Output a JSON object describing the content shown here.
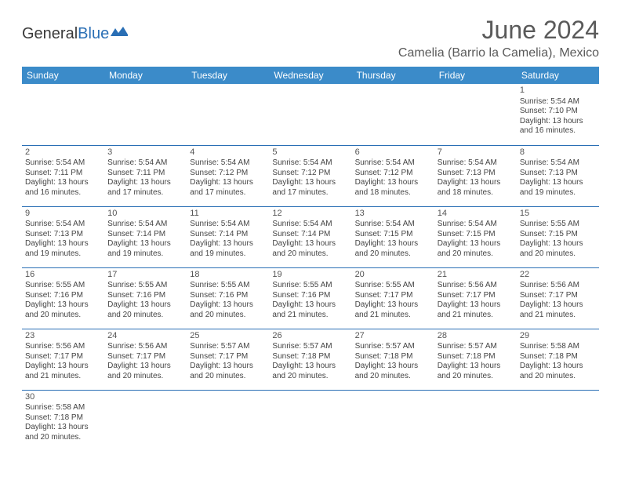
{
  "brand": {
    "part1": "General",
    "part2": "Blue"
  },
  "title": "June 2024",
  "location": "Camelia (Barrio la Camelia), Mexico",
  "colors": {
    "header_bg": "#3b8bc9",
    "header_text": "#ffffff",
    "rule": "#2a6fb5",
    "text": "#444444",
    "title": "#5a5a5a"
  },
  "day_headers": [
    "Sunday",
    "Monday",
    "Tuesday",
    "Wednesday",
    "Thursday",
    "Friday",
    "Saturday"
  ],
  "labels": {
    "sunrise": "Sunrise:",
    "sunset": "Sunset:",
    "daylight": "Daylight:"
  },
  "weeks": [
    [
      null,
      null,
      null,
      null,
      null,
      null,
      {
        "n": "1",
        "sr": "5:54 AM",
        "ss": "7:10 PM",
        "dl": "13 hours and 16 minutes."
      }
    ],
    [
      {
        "n": "2",
        "sr": "5:54 AM",
        "ss": "7:11 PM",
        "dl": "13 hours and 16 minutes."
      },
      {
        "n": "3",
        "sr": "5:54 AM",
        "ss": "7:11 PM",
        "dl": "13 hours and 17 minutes."
      },
      {
        "n": "4",
        "sr": "5:54 AM",
        "ss": "7:12 PM",
        "dl": "13 hours and 17 minutes."
      },
      {
        "n": "5",
        "sr": "5:54 AM",
        "ss": "7:12 PM",
        "dl": "13 hours and 17 minutes."
      },
      {
        "n": "6",
        "sr": "5:54 AM",
        "ss": "7:12 PM",
        "dl": "13 hours and 18 minutes."
      },
      {
        "n": "7",
        "sr": "5:54 AM",
        "ss": "7:13 PM",
        "dl": "13 hours and 18 minutes."
      },
      {
        "n": "8",
        "sr": "5:54 AM",
        "ss": "7:13 PM",
        "dl": "13 hours and 19 minutes."
      }
    ],
    [
      {
        "n": "9",
        "sr": "5:54 AM",
        "ss": "7:13 PM",
        "dl": "13 hours and 19 minutes."
      },
      {
        "n": "10",
        "sr": "5:54 AM",
        "ss": "7:14 PM",
        "dl": "13 hours and 19 minutes."
      },
      {
        "n": "11",
        "sr": "5:54 AM",
        "ss": "7:14 PM",
        "dl": "13 hours and 19 minutes."
      },
      {
        "n": "12",
        "sr": "5:54 AM",
        "ss": "7:14 PM",
        "dl": "13 hours and 20 minutes."
      },
      {
        "n": "13",
        "sr": "5:54 AM",
        "ss": "7:15 PM",
        "dl": "13 hours and 20 minutes."
      },
      {
        "n": "14",
        "sr": "5:54 AM",
        "ss": "7:15 PM",
        "dl": "13 hours and 20 minutes."
      },
      {
        "n": "15",
        "sr": "5:55 AM",
        "ss": "7:15 PM",
        "dl": "13 hours and 20 minutes."
      }
    ],
    [
      {
        "n": "16",
        "sr": "5:55 AM",
        "ss": "7:16 PM",
        "dl": "13 hours and 20 minutes."
      },
      {
        "n": "17",
        "sr": "5:55 AM",
        "ss": "7:16 PM",
        "dl": "13 hours and 20 minutes."
      },
      {
        "n": "18",
        "sr": "5:55 AM",
        "ss": "7:16 PM",
        "dl": "13 hours and 20 minutes."
      },
      {
        "n": "19",
        "sr": "5:55 AM",
        "ss": "7:16 PM",
        "dl": "13 hours and 21 minutes."
      },
      {
        "n": "20",
        "sr": "5:55 AM",
        "ss": "7:17 PM",
        "dl": "13 hours and 21 minutes."
      },
      {
        "n": "21",
        "sr": "5:56 AM",
        "ss": "7:17 PM",
        "dl": "13 hours and 21 minutes."
      },
      {
        "n": "22",
        "sr": "5:56 AM",
        "ss": "7:17 PM",
        "dl": "13 hours and 21 minutes."
      }
    ],
    [
      {
        "n": "23",
        "sr": "5:56 AM",
        "ss": "7:17 PM",
        "dl": "13 hours and 21 minutes."
      },
      {
        "n": "24",
        "sr": "5:56 AM",
        "ss": "7:17 PM",
        "dl": "13 hours and 20 minutes."
      },
      {
        "n": "25",
        "sr": "5:57 AM",
        "ss": "7:17 PM",
        "dl": "13 hours and 20 minutes."
      },
      {
        "n": "26",
        "sr": "5:57 AM",
        "ss": "7:18 PM",
        "dl": "13 hours and 20 minutes."
      },
      {
        "n": "27",
        "sr": "5:57 AM",
        "ss": "7:18 PM",
        "dl": "13 hours and 20 minutes."
      },
      {
        "n": "28",
        "sr": "5:57 AM",
        "ss": "7:18 PM",
        "dl": "13 hours and 20 minutes."
      },
      {
        "n": "29",
        "sr": "5:58 AM",
        "ss": "7:18 PM",
        "dl": "13 hours and 20 minutes."
      }
    ],
    [
      {
        "n": "30",
        "sr": "5:58 AM",
        "ss": "7:18 PM",
        "dl": "13 hours and 20 minutes."
      },
      null,
      null,
      null,
      null,
      null,
      null
    ]
  ]
}
